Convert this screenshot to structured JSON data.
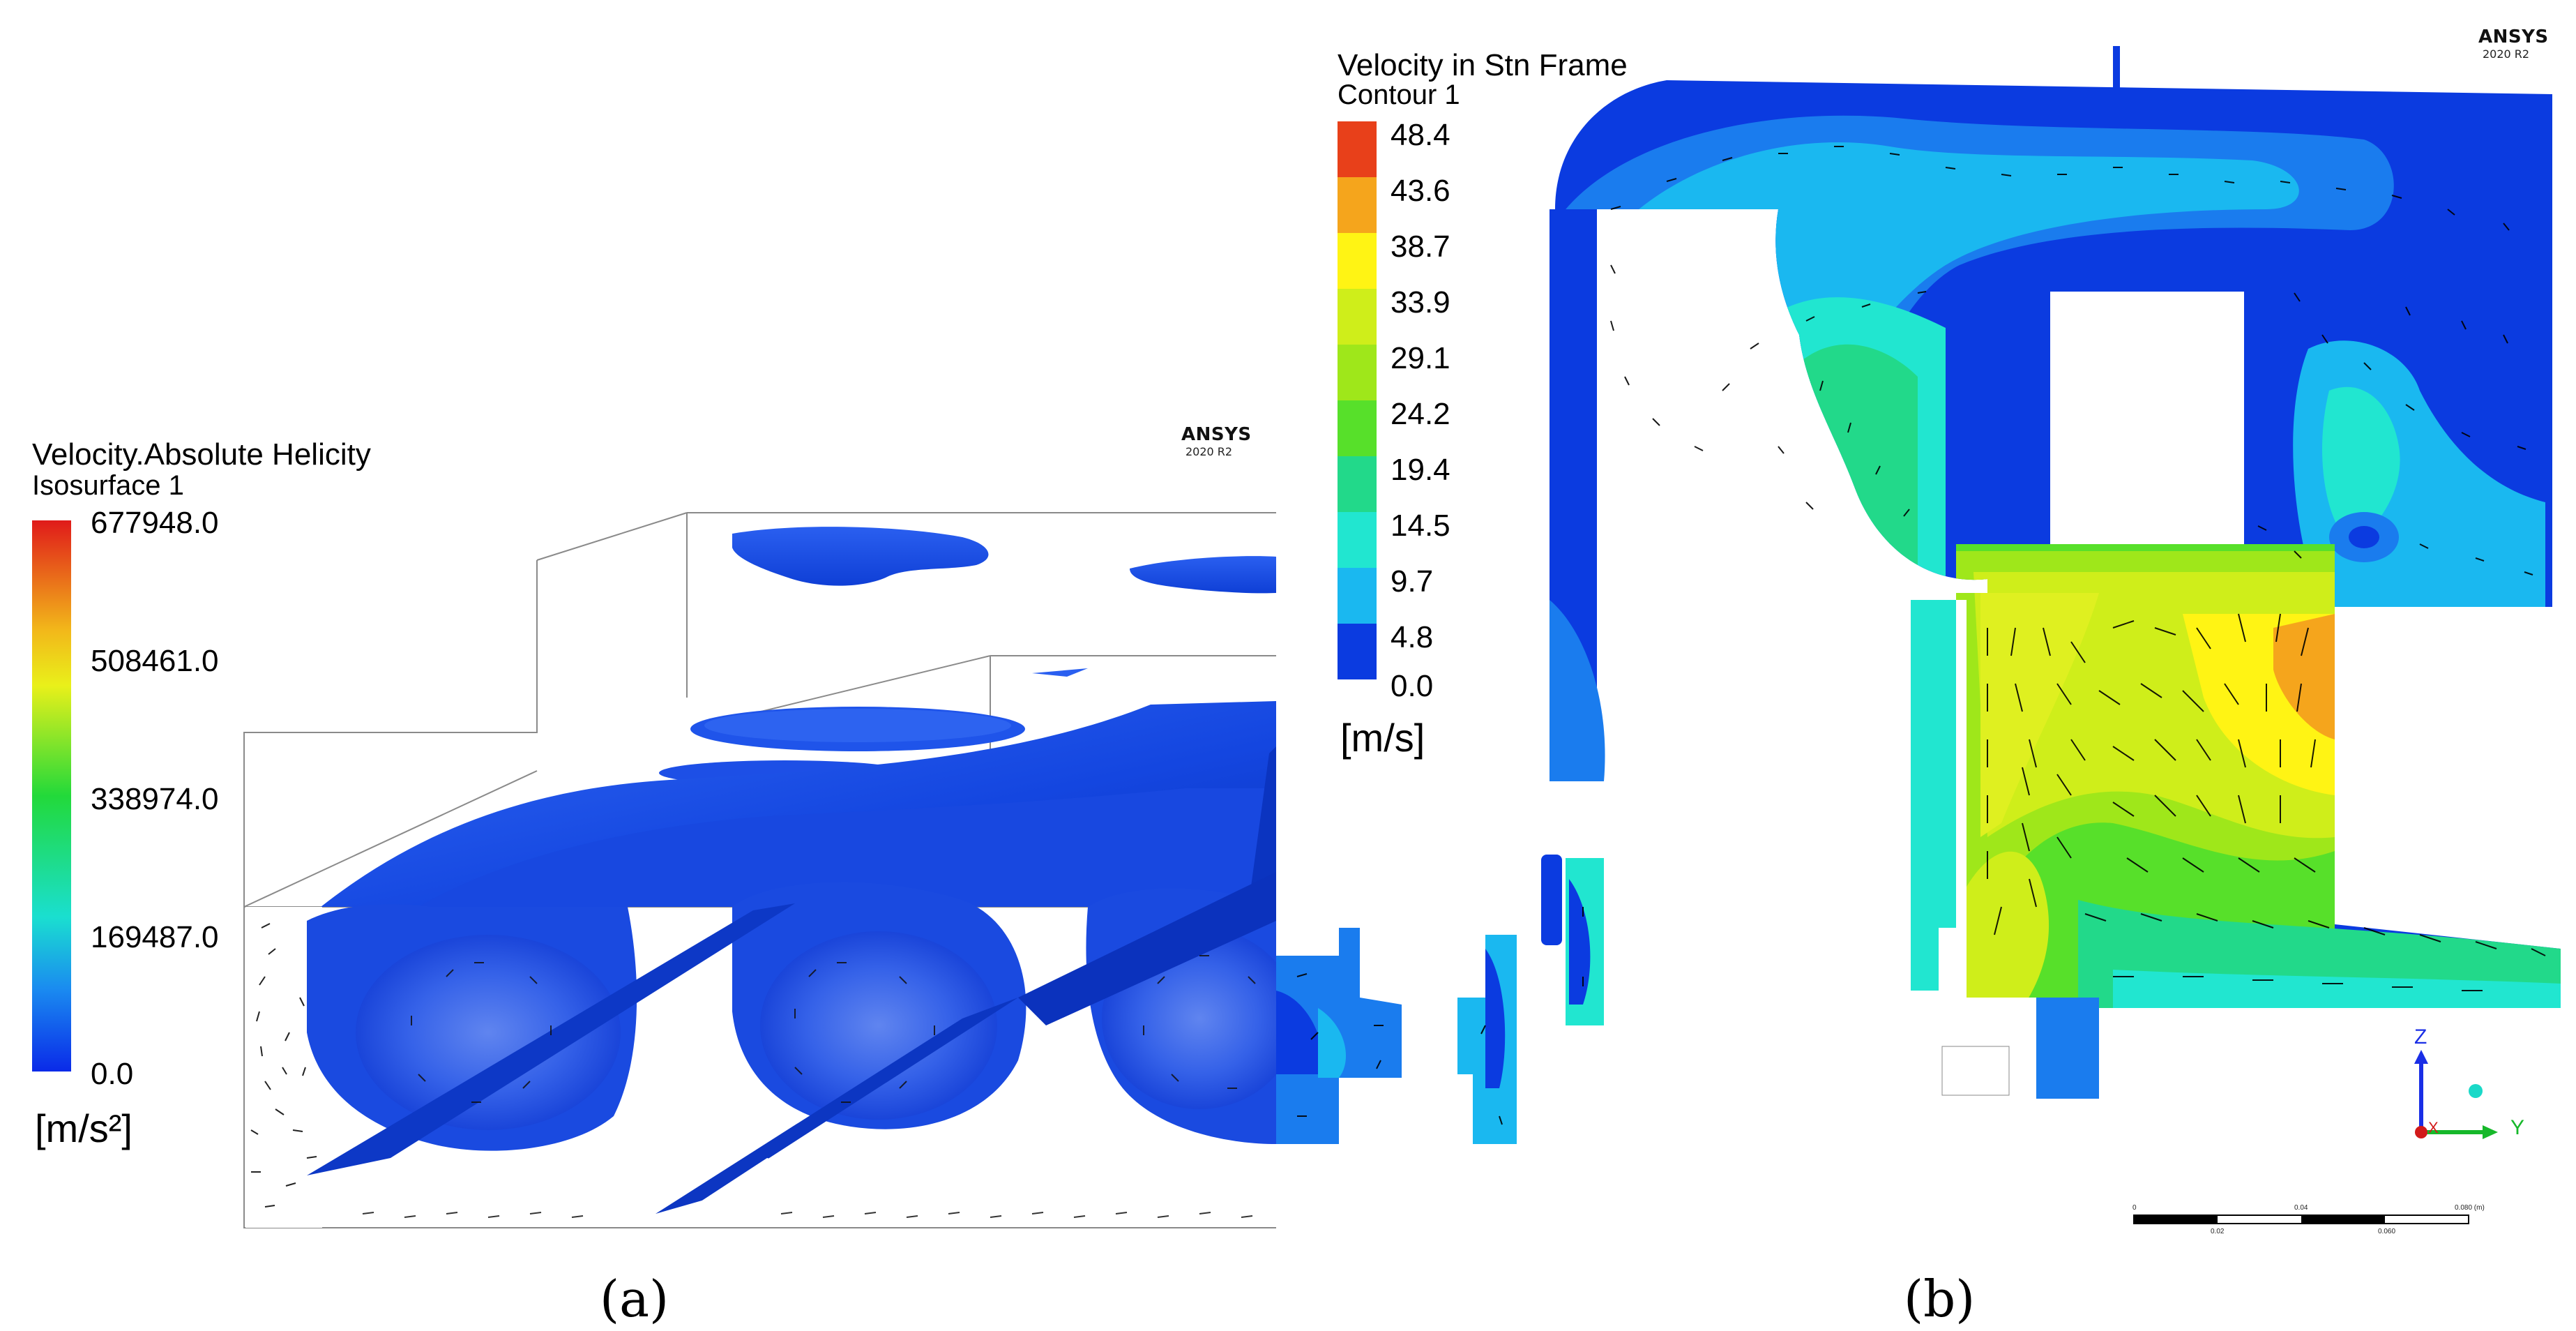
{
  "panel_a": {
    "legend": {
      "title": "Velocity.Absolute Helicity",
      "subtitle": "Isosurface 1",
      "ticks": [
        "677948.0",
        "508461.0",
        "338974.0",
        "169487.0",
        "0.0"
      ],
      "unit": "[m/s²]"
    },
    "brand": "ANSYS",
    "version": "2020 R2",
    "caption": "(a)"
  },
  "panel_b": {
    "legend": {
      "title": "Velocity in Stn Frame",
      "subtitle": "Contour 1",
      "ticks": [
        "48.4",
        "43.6",
        "38.7",
        "33.9",
        "29.1",
        "24.2",
        "19.4",
        "14.5",
        "9.7",
        "4.8",
        "0.0"
      ],
      "unit": "[m/s]",
      "colors": [
        "#e8401a",
        "#f5a51c",
        "#fff414",
        "#cfee1a",
        "#9fe71a",
        "#57e02a",
        "#22d98a",
        "#21e6d0",
        "#1ab8f0",
        "#1a7cee",
        "#0b3be0"
      ]
    },
    "brand": "ANSYS",
    "version": "2020 R2",
    "axes": {
      "z": "Z",
      "y": "Y",
      "x": "X"
    },
    "scale": {
      "top_labels": [
        "0",
        "0.04",
        "0.080 (m)"
      ],
      "bottom_labels": [
        "0.02",
        "0.060"
      ]
    },
    "caption": "(b)"
  }
}
